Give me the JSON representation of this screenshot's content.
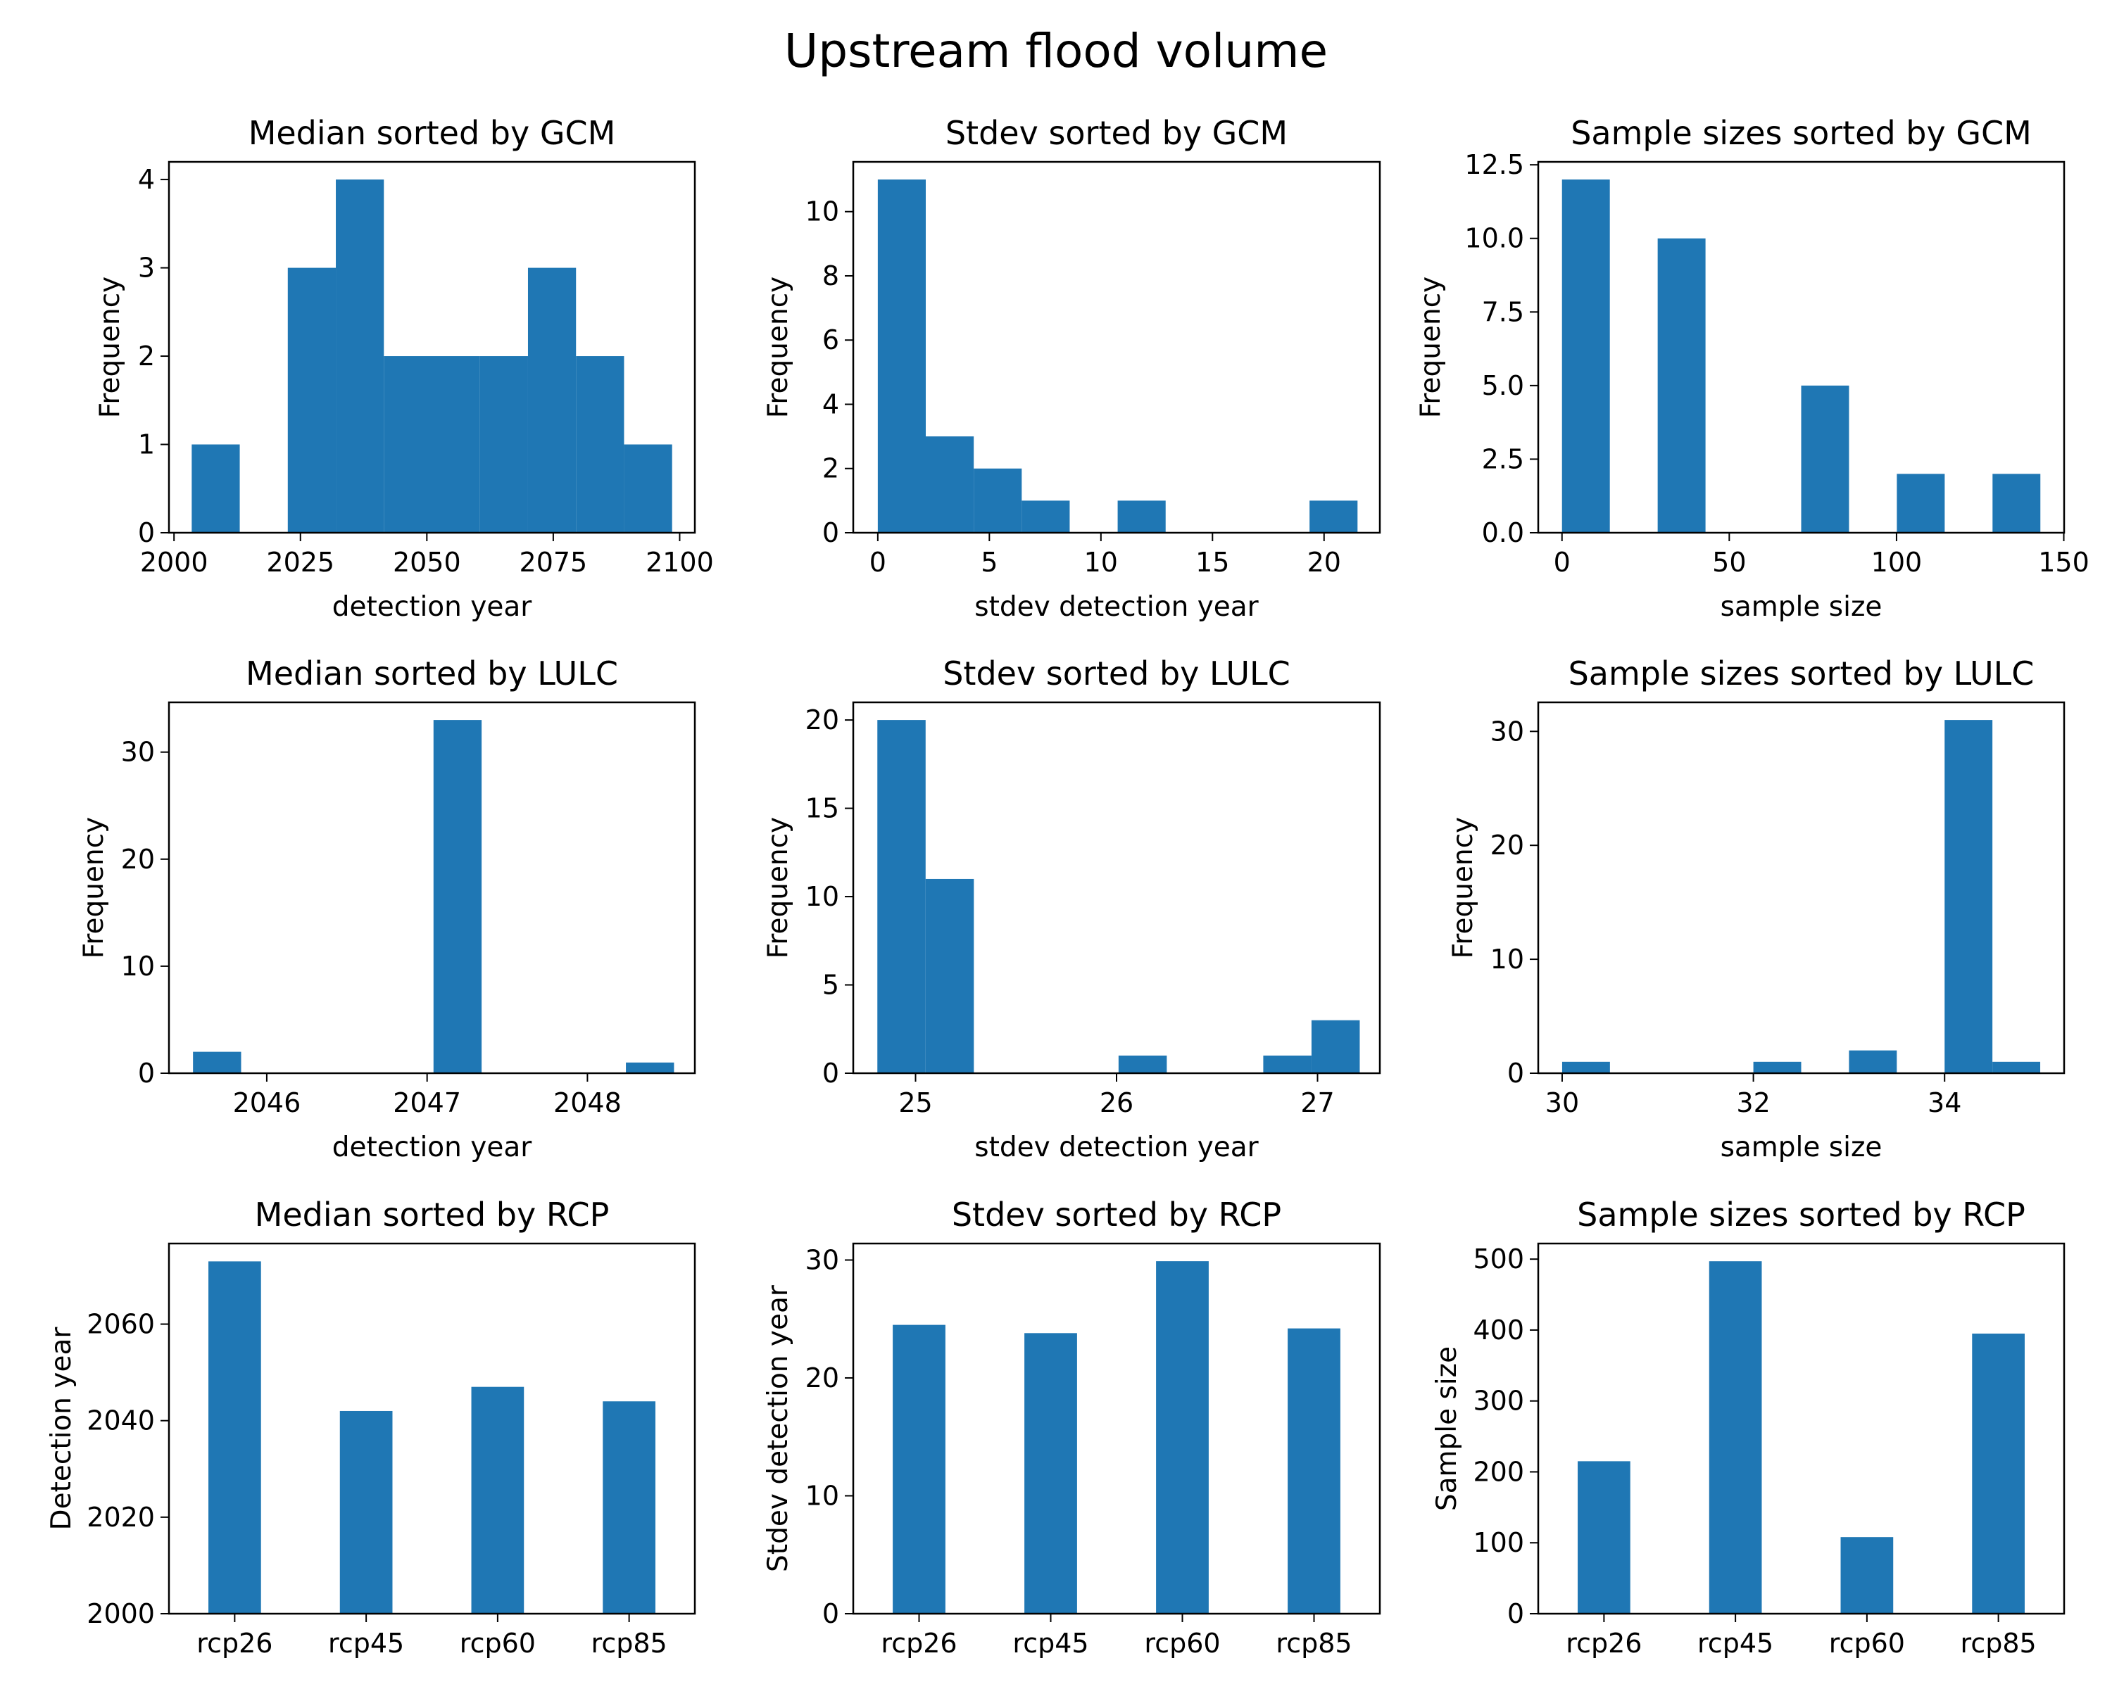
{
  "figure": {
    "title": "Upstream flood volume"
  },
  "colors": {
    "bar": "#1f77b4",
    "axis": "#000000",
    "background": "#ffffff"
  },
  "chart_data": [
    {
      "type": "histogram",
      "title": "Median sorted by GCM",
      "xlabel": "detection year",
      "ylabel": "Frequency",
      "xlim": [
        1999,
        2103
      ],
      "ylim": [
        0,
        4.2
      ],
      "xticks": [
        2000,
        2025,
        2050,
        2075,
        2100
      ],
      "yticks": [
        0,
        1,
        2,
        3,
        4
      ],
      "bins": [
        2003.5,
        2013.0,
        2022.5,
        2032.0,
        2041.5,
        2051.0,
        2060.5,
        2070.0,
        2079.5,
        2089.0,
        2098.5
      ],
      "counts": [
        1,
        0,
        3,
        4,
        2,
        2,
        2,
        3,
        2,
        1
      ]
    },
    {
      "type": "histogram",
      "title": "Stdev sorted by GCM",
      "xlabel": "stdev detection year",
      "ylabel": "Frequency",
      "xlim": [
        -1.1,
        22.5
      ],
      "ylim": [
        0,
        11.55
      ],
      "xticks": [
        0,
        5,
        10,
        15,
        20
      ],
      "yticks": [
        0,
        2,
        4,
        6,
        8,
        10
      ],
      "bins": [
        0.0,
        2.15,
        4.3,
        6.45,
        8.6,
        10.75,
        12.9,
        15.05,
        17.2,
        19.35,
        21.5
      ],
      "counts": [
        11,
        3,
        2,
        1,
        0,
        1,
        0,
        0,
        0,
        1
      ]
    },
    {
      "type": "histogram",
      "title": "Sample sizes sorted by GCM",
      "xlabel": "sample size",
      "ylabel": "Frequency",
      "xlim": [
        -7.1,
        150.1
      ],
      "ylim": [
        0,
        12.6
      ],
      "xticks": [
        0,
        50,
        100,
        150
      ],
      "yticks": [
        0.0,
        2.5,
        5.0,
        7.5,
        10.0,
        12.5
      ],
      "ytick_format": "fixed1",
      "bins": [
        0.0,
        14.3,
        28.6,
        42.9,
        57.2,
        71.5,
        85.8,
        100.1,
        114.4,
        128.7,
        143.0
      ],
      "counts": [
        12,
        0,
        10,
        0,
        0,
        5,
        0,
        2,
        0,
        2
      ]
    },
    {
      "type": "histogram",
      "title": "Median sorted by LULC",
      "xlabel": "detection year",
      "ylabel": "Frequency",
      "xlim": [
        2045.39,
        2048.67
      ],
      "ylim": [
        0,
        34.65
      ],
      "xticks": [
        2046,
        2047,
        2048
      ],
      "yticks": [
        0,
        10,
        20,
        30
      ],
      "bins": [
        2045.54,
        2045.84,
        2046.14,
        2046.44,
        2046.74,
        2047.04,
        2047.34,
        2047.64,
        2047.94,
        2048.24,
        2048.54
      ],
      "counts": [
        2,
        0,
        0,
        0,
        0,
        33,
        0,
        0,
        0,
        1
      ]
    },
    {
      "type": "histogram",
      "title": "Stdev sorted by LULC",
      "xlabel": "stdev detection year",
      "ylabel": "Frequency",
      "xlim": [
        24.69,
        27.31
      ],
      "ylim": [
        0,
        21.0
      ],
      "xticks": [
        25,
        26,
        27
      ],
      "yticks": [
        0,
        5,
        10,
        15,
        20
      ],
      "bins": [
        24.81,
        25.05,
        25.29,
        25.53,
        25.77,
        26.01,
        26.25,
        26.49,
        26.73,
        26.97,
        27.21
      ],
      "counts": [
        20,
        11,
        0,
        0,
        0,
        1,
        0,
        0,
        1,
        3
      ]
    },
    {
      "type": "histogram",
      "title": "Sample sizes sorted by LULC",
      "xlabel": "sample size",
      "ylabel": "Frequency",
      "xlim": [
        29.75,
        35.25
      ],
      "ylim": [
        0,
        32.55
      ],
      "xticks": [
        30,
        32,
        34
      ],
      "yticks": [
        0,
        10,
        20,
        30
      ],
      "bins": [
        30.0,
        30.5,
        31.0,
        31.5,
        32.0,
        32.5,
        33.0,
        33.5,
        34.0,
        34.5,
        35.0
      ],
      "counts": [
        1,
        0,
        0,
        0,
        1,
        0,
        2,
        0,
        31,
        1
      ]
    },
    {
      "type": "bar",
      "title": "Median sorted by RCP",
      "xlabel": "",
      "ylabel": "Detection year",
      "categories": [
        "rcp26",
        "rcp45",
        "rcp60",
        "rcp85"
      ],
      "values": [
        2073,
        2042,
        2047,
        2044
      ],
      "ylim": [
        2000,
        2076.7
      ],
      "yticks": [
        2000,
        2020,
        2040,
        2060
      ]
    },
    {
      "type": "bar",
      "title": "Stdev sorted by RCP",
      "xlabel": "",
      "ylabel": "Stdev detection year",
      "categories": [
        "rcp26",
        "rcp45",
        "rcp60",
        "rcp85"
      ],
      "values": [
        24.5,
        23.8,
        29.9,
        24.2
      ],
      "ylim": [
        0,
        31.4
      ],
      "yticks": [
        0,
        10,
        20,
        30
      ]
    },
    {
      "type": "bar",
      "title": "Sample sizes sorted by RCP",
      "xlabel": "",
      "ylabel": "Sample size",
      "categories": [
        "rcp26",
        "rcp45",
        "rcp60",
        "rcp85"
      ],
      "values": [
        215,
        497,
        108,
        395
      ],
      "ylim": [
        0,
        522
      ],
      "yticks": [
        0,
        100,
        200,
        300,
        400,
        500
      ]
    }
  ]
}
